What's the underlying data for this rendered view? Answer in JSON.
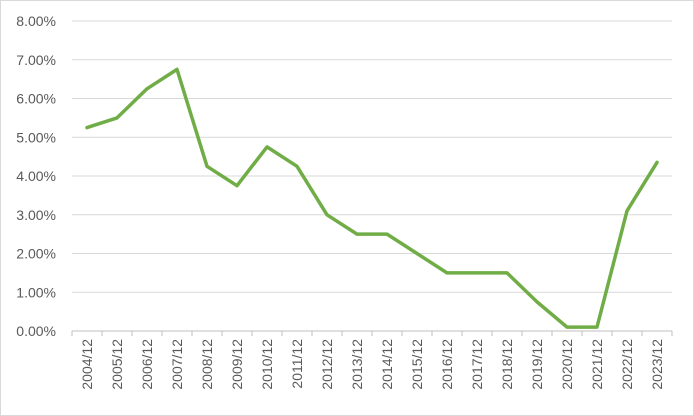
{
  "chart_data": {
    "type": "line",
    "title": "",
    "xlabel": "",
    "ylabel": "",
    "categories": [
      "2004/12",
      "2005/12",
      "2006/12",
      "2007/12",
      "2008/12",
      "2009/12",
      "2010/12",
      "2011/12",
      "2012/12",
      "2013/12",
      "2014/12",
      "2015/12",
      "2016/12",
      "2017/12",
      "2018/12",
      "2019/12",
      "2020/12",
      "2021/12",
      "2022/12",
      "2023/12"
    ],
    "series": [
      {
        "color": "#70ad47",
        "values": [
          5.25,
          5.5,
          6.25,
          6.75,
          4.25,
          3.75,
          4.75,
          4.25,
          3.0,
          2.5,
          2.5,
          2.0,
          1.5,
          1.5,
          1.5,
          0.75,
          0.1,
          0.1,
          3.1,
          4.35
        ]
      }
    ],
    "ylim": [
      0,
      8
    ],
    "yticks": [
      "0.00%",
      "1.00%",
      "2.00%",
      "3.00%",
      "4.00%",
      "5.00%",
      "6.00%",
      "7.00%",
      "8.00%"
    ],
    "grid": true,
    "legend": "none"
  }
}
